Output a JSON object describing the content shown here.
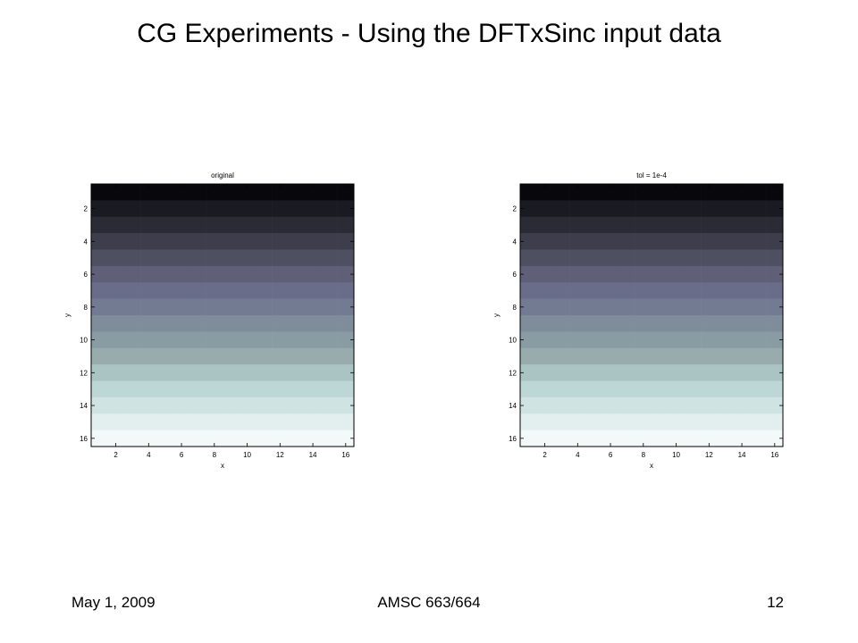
{
  "slide": {
    "title": "CG Experiments - Using the DFTxSinc input data",
    "footer_date": "May 1, 2009",
    "footer_course": "AMSC 663/664",
    "footer_page": "12"
  },
  "chart_data": [
    {
      "type": "heatmap",
      "title": "original",
      "xlabel": "x",
      "ylabel": "y",
      "x_ticks": [
        2,
        4,
        6,
        8,
        10,
        12,
        14,
        16
      ],
      "y_ticks": [
        2,
        4,
        6,
        8,
        10,
        12,
        14,
        16
      ],
      "xlim": [
        0.5,
        16.5
      ],
      "ylim": [
        16.5,
        0.5
      ],
      "colormap": "bone",
      "grid": false,
      "rows": 16,
      "cols": 16,
      "row_colors": [
        "#08080c",
        "#1a1a22",
        "#2b2b35",
        "#3d3d4b",
        "#4f4f62",
        "#5f5f77",
        "#6a6d89",
        "#737b92",
        "#7e8d99",
        "#8a9ca3",
        "#99acad",
        "#aac3c3",
        "#bdd6d6",
        "#cfe3e3",
        "#e3eeee",
        "#f3f8f8"
      ]
    },
    {
      "type": "heatmap",
      "title": "tol = 1e-4",
      "xlabel": "x",
      "ylabel": "y",
      "x_ticks": [
        2,
        4,
        6,
        8,
        10,
        12,
        14,
        16
      ],
      "y_ticks": [
        2,
        4,
        6,
        8,
        10,
        12,
        14,
        16
      ],
      "xlim": [
        0.5,
        16.5
      ],
      "ylim": [
        16.5,
        0.5
      ],
      "colormap": "bone",
      "grid": false,
      "rows": 16,
      "cols": 16,
      "row_colors": [
        "#08080c",
        "#1a1a22",
        "#2b2b35",
        "#3d3d4b",
        "#4f4f62",
        "#5f5f77",
        "#6a6d89",
        "#737b92",
        "#7e8d99",
        "#8a9ca3",
        "#99acad",
        "#aac3c3",
        "#bdd6d6",
        "#cfe3e3",
        "#e3eeee",
        "#f3f8f8"
      ]
    }
  ]
}
